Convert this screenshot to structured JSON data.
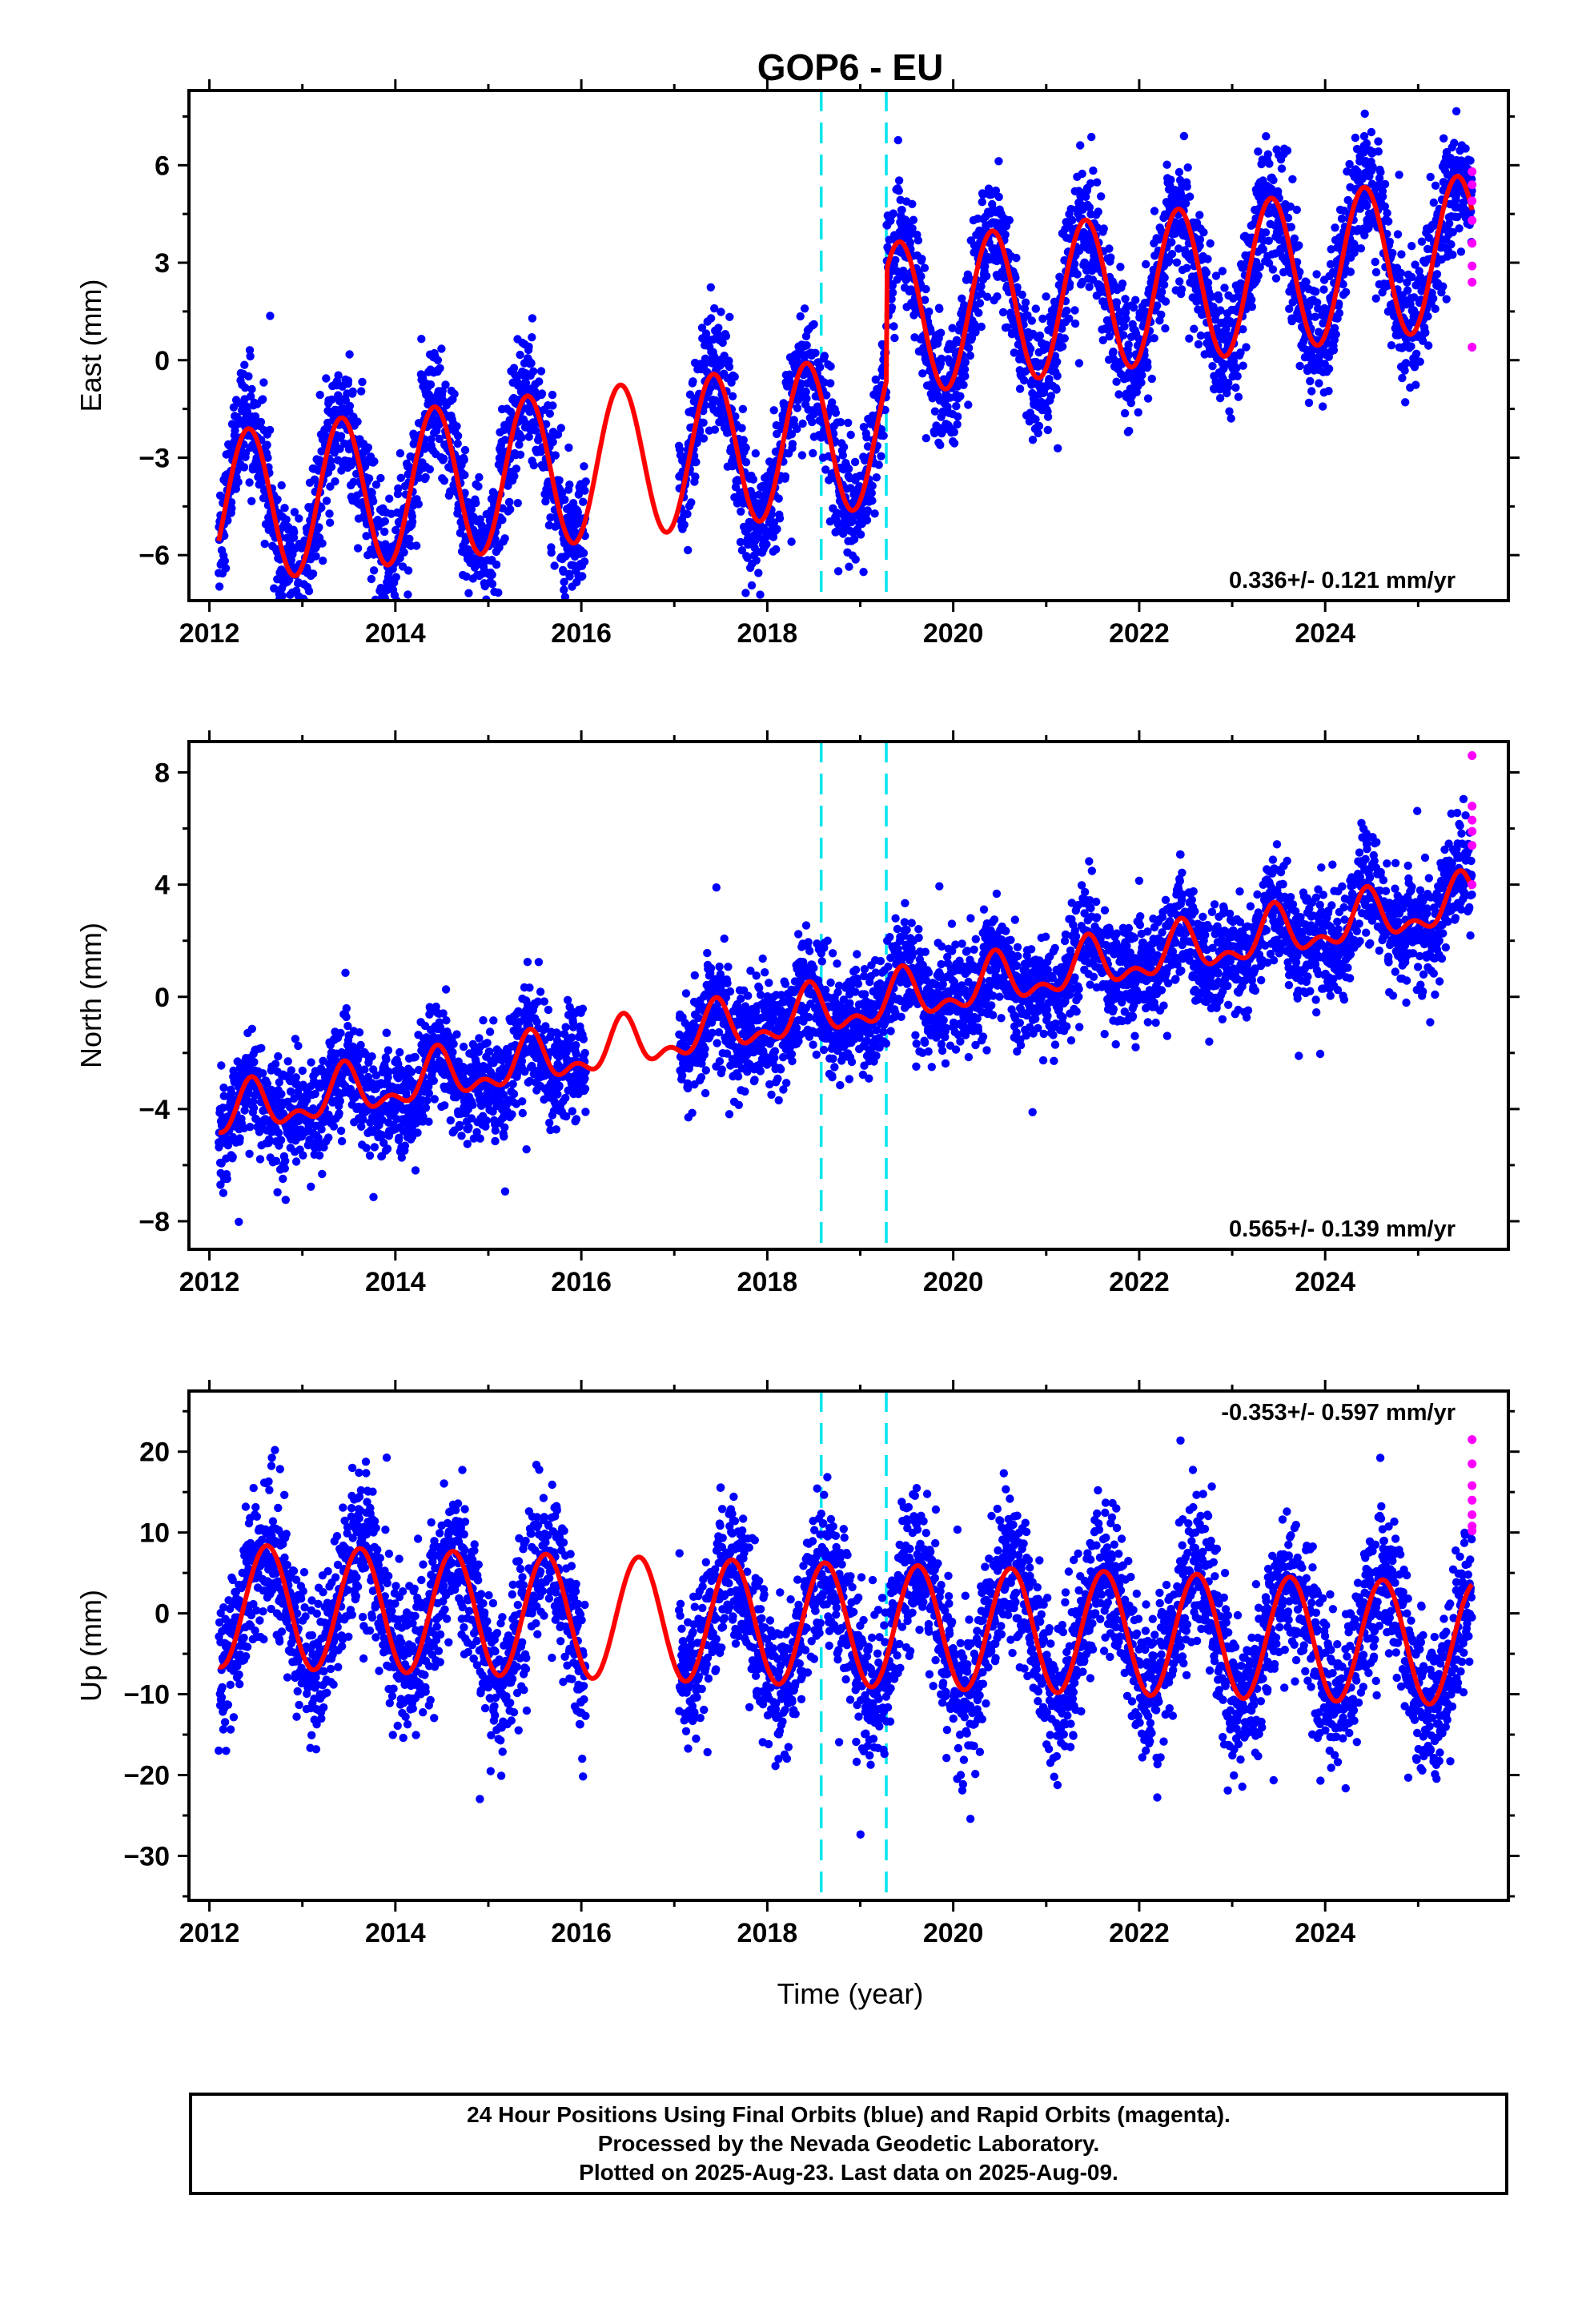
{
  "title": "GOP6 - EU",
  "xlabel": "Time (year)",
  "footer": {
    "line1": "24 Hour Positions Using Final Orbits (blue) and Rapid Orbits (magenta).",
    "line2": "Processed by the Nevada Geodetic Laboratory.",
    "line3": "Plotted on 2025-Aug-23. Last data on 2025-Aug-09."
  },
  "colors": {
    "final_orbits": "#0000ff",
    "rapid_orbits": "#ff00ff",
    "model_fit": "#ff0000",
    "equipment_change": "#00e5ee"
  },
  "chart_data": [
    {
      "type": "scatter",
      "name": "east",
      "ylabel": "East (mm)",
      "rate_text": "0.336+/- 0.121 mm/yr",
      "xlim": [
        2011.78,
        2025.97
      ],
      "ylim": [
        -7.4,
        8.3
      ],
      "x_ticks": [
        2012,
        2014,
        2016,
        2018,
        2020,
        2022,
        2024
      ],
      "y_ticks": [
        -6,
        -3,
        0,
        3,
        6
      ],
      "y_tick_labels": [
        "−6",
        "−3",
        "0",
        "3",
        "6"
      ],
      "vertical_lines": [
        2018.58,
        2019.28
      ],
      "data_gap": [
        2016.05,
        2017.05
      ],
      "data_range": [
        2012.1,
        2025.58
      ],
      "model": {
        "offset": -4.6,
        "rate": 0.336,
        "annual_amp": 2.35,
        "peak_phase": 0.42,
        "step_at": 2019.28,
        "step": 3.4,
        "noise_sd": 0.95
      },
      "rapid_values": [
        5.8,
        5.4,
        4.9,
        4.3,
        3.6,
        2.9,
        2.4,
        0.4
      ]
    },
    {
      "type": "scatter",
      "name": "north",
      "ylabel": "North (mm)",
      "rate_text": "0.565+/- 0.139 mm/yr",
      "xlim": [
        2011.78,
        2025.97
      ],
      "ylim": [
        -9.0,
        9.1
      ],
      "x_ticks": [
        2012,
        2014,
        2016,
        2018,
        2020,
        2022,
        2024
      ],
      "y_ticks": [
        -8,
        -4,
        0,
        4,
        8
      ],
      "y_tick_labels": [
        "−8",
        "−4",
        "0",
        "4",
        "8"
      ],
      "vertical_lines": [
        2018.58,
        2019.28
      ],
      "data_gap": [
        2016.05,
        2017.05
      ],
      "data_range": [
        2012.1,
        2025.58
      ],
      "model": {
        "offset": -4.3,
        "rate": 0.565,
        "annual_amp": 0.75,
        "peak_phase": 0.45,
        "semi_amp": 0.45,
        "noise_sd": 0.95
      },
      "rapid_values": [
        8.6,
        6.8,
        6.3,
        5.9,
        5.4,
        4.0
      ]
    },
    {
      "type": "scatter",
      "name": "up",
      "ylabel": "Up (mm)",
      "rate_text": "-0.353+/- 0.597 mm/yr",
      "xlim": [
        2011.78,
        2025.97
      ],
      "ylim": [
        -35.5,
        27.5
      ],
      "x_ticks": [
        2012,
        2014,
        2016,
        2018,
        2020,
        2022,
        2024
      ],
      "y_ticks": [
        -30,
        -20,
        -10,
        0,
        10,
        20
      ],
      "y_tick_labels": [
        "−30",
        "−20",
        "−10",
        "0",
        "10",
        "20"
      ],
      "vertical_lines": [
        2018.58,
        2019.28
      ],
      "data_gap": [
        2016.05,
        2017.05
      ],
      "data_range": [
        2012.1,
        2025.58
      ],
      "model": {
        "offset": 1.0,
        "rate": -0.353,
        "annual_amp": 7.6,
        "peak_phase": 0.62,
        "noise_sd": 4.6
      },
      "rapid_values": [
        21.5,
        18.5,
        15.8,
        14.0,
        12.2,
        10.8,
        10.2
      ]
    }
  ]
}
